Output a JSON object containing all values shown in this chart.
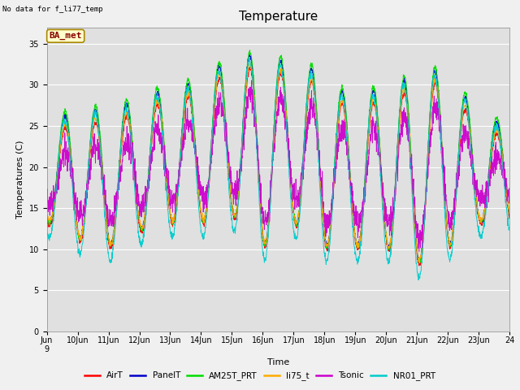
{
  "title": "Temperature",
  "xlabel": "Time",
  "ylabel": "Temperatures (C)",
  "note": "No data for f_li77_temp",
  "legend_label": "BA_met",
  "ylim": [
    0,
    37
  ],
  "yticks": [
    0,
    5,
    10,
    15,
    20,
    25,
    30,
    35
  ],
  "series": [
    "AirT",
    "PanelT",
    "AM25T_PRT",
    "li75_t",
    "Tsonic",
    "NR01_PRT"
  ],
  "colors": [
    "#ff0000",
    "#0000cc",
    "#00dd00",
    "#ffaa00",
    "#cc00cc",
    "#00cccc"
  ],
  "n_days": 15,
  "n_points": 2160,
  "background_color": "#f0f0f0",
  "plot_bg": "#e0e0e0",
  "grid_color": "#ffffff",
  "title_fontsize": 11,
  "label_fontsize": 8,
  "tick_fontsize": 7,
  "day_peaks": [
    23,
    26,
    25,
    27,
    28,
    29,
    32,
    32,
    31,
    30,
    26,
    29,
    29,
    31,
    24
  ],
  "day_nights": [
    13,
    11,
    10,
    12,
    13,
    13,
    14,
    10,
    13,
    10,
    10,
    10,
    8,
    10,
    13
  ]
}
